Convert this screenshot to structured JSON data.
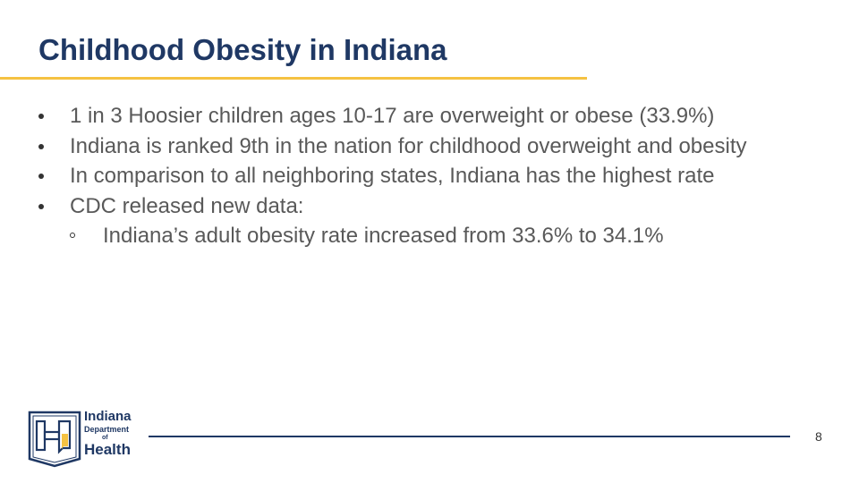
{
  "slide": {
    "title": "Childhood Obesity in Indiana",
    "bullets": [
      "1 in 3 Hoosier children ages 10-17 are overweight or obese (33.9%)",
      "Indiana is ranked 9th in the nation for childhood overweight and obesity",
      "In comparison to all neighboring states, Indiana has the highest rate",
      "CDC released new data:"
    ],
    "sub_bullets": [
      "Indiana’s adult obesity rate increased from 33.6% to 34.1%"
    ],
    "page_number": "8"
  },
  "logo": {
    "line1": "Indiana",
    "line2": "Department",
    "line3": "of",
    "line4": "Health"
  },
  "colors": {
    "title": "#1f3864",
    "underline": "#f5c242",
    "body_text": "#595959",
    "logo_blue": "#1f3864",
    "logo_gold": "#f5c242"
  }
}
